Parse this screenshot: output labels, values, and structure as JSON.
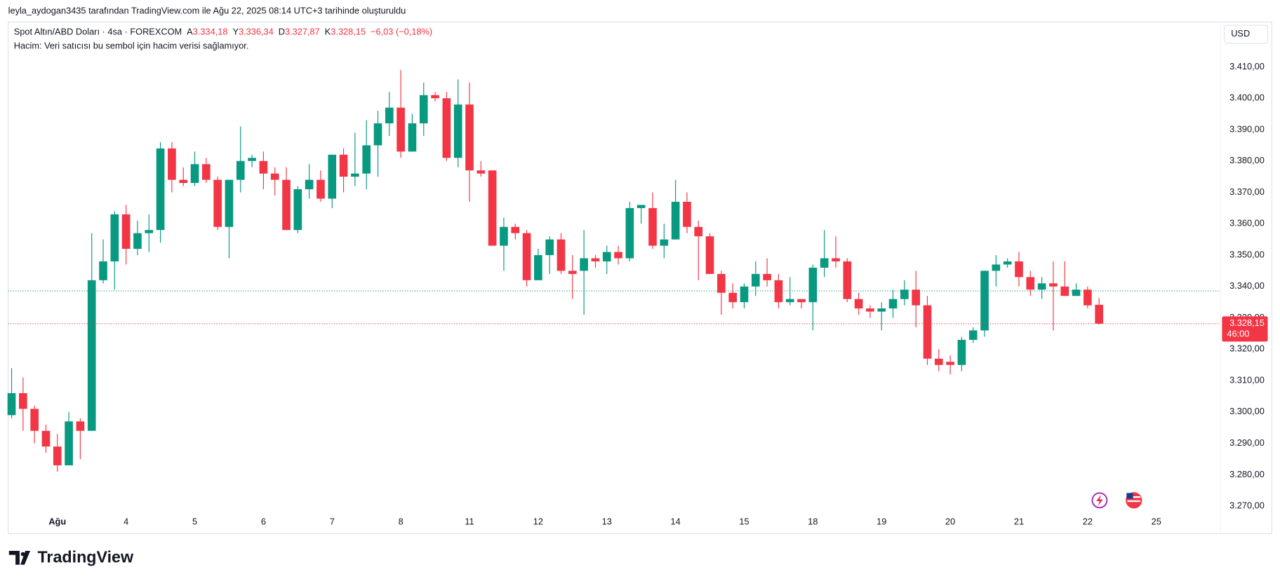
{
  "header": {
    "credit": "leyla_aydogan3435 tarafından TradingView.com ile Ağu 22, 2025 08:14 UTC+3 tarihinde oluşturuldu"
  },
  "chart_data": {
    "type": "candlestick",
    "legend": {
      "symbol": "Spot Altın/ABD Doları · 4sa · FOREXCOM",
      "open_label": "A",
      "open": "3.334,18",
      "high_label": "Y",
      "high": "3.336,34",
      "low_label": "D",
      "low": "3.327,87",
      "close_label": "K",
      "close": "3.328,15",
      "change": "−6,03 (−0,18%)"
    },
    "note": "Hacim: Veri satıcısı bu sembol için hacim verisi sağlamıyor.",
    "currency": "USD",
    "up_color": "#089981",
    "down_color": "#f23645",
    "open": [
      3299,
      3306,
      3301,
      3294,
      3289,
      3283,
      3297,
      3294,
      3342,
      3348,
      3363,
      3352,
      3357,
      3358,
      3384,
      3374,
      3373,
      3379,
      3374,
      3359,
      3374,
      3380,
      3380,
      3376,
      3374,
      3358,
      3371,
      3374,
      3368,
      3382,
      3375,
      3376,
      3385,
      3392,
      3397,
      3383,
      3392,
      3401,
      3400,
      3381,
      3398,
      3377,
      3377,
      3353,
      3359,
      3357,
      3342,
      3350,
      3355,
      3345,
      3345,
      3349,
      3348,
      3351,
      3349,
      3365,
      3365,
      3353,
      3355,
      3367,
      3359,
      3356,
      3344,
      3338,
      3335,
      3340,
      3344,
      3342,
      3335,
      3336,
      3335,
      3346,
      3349,
      3348,
      3336,
      3333,
      3332,
      3333,
      3336,
      3339,
      3334,
      3317,
      3316,
      3315,
      3323,
      3326,
      3345,
      3347,
      3348,
      3343,
      3339,
      3341,
      3340,
      3337,
      3339,
      3334.18
    ],
    "high": [
      3314,
      3311,
      3302,
      3296,
      3293,
      3300,
      3298,
      3357,
      3355,
      3364,
      3366,
      3361,
      3363,
      3386,
      3386,
      3378,
      3383,
      3381,
      3375,
      3374,
      3391,
      3382,
      3383,
      3378,
      3378,
      3372,
      3379,
      3377,
      3382,
      3384,
      3389,
      3393,
      3396,
      3402,
      3409,
      3395,
      3405,
      3402,
      3402,
      3406,
      3405,
      3380,
      3377,
      3362,
      3360,
      3358,
      3352,
      3356,
      3357,
      3350,
      3358,
      3350,
      3353,
      3353,
      3367,
      3366,
      3370,
      3360,
      3374,
      3370,
      3361,
      3357,
      3345,
      3341,
      3341,
      3348,
      3349,
      3344,
      3343,
      3336,
      3347,
      3358,
      3356,
      3349,
      3338,
      3334,
      3335,
      3339,
      3342,
      3345,
      3337,
      3320,
      3318,
      3324,
      3327,
      3345,
      3350,
      3349,
      3351,
      3345,
      3343,
      3348,
      3348,
      3341,
      3340,
      3336.34
    ],
    "low": [
      3298,
      3294,
      3290,
      3287,
      3281,
      3283,
      3285,
      3294,
      3341,
      3339,
      3347,
      3350,
      3351,
      3354,
      3370,
      3372,
      3372,
      3373,
      3358,
      3349,
      3370,
      3378,
      3371,
      3369,
      3358,
      3357,
      3368,
      3367,
      3365,
      3370,
      3372,
      3371,
      3375,
      3388,
      3381,
      3383,
      3388,
      3399,
      3380,
      3378,
      3367,
      3375,
      3353,
      3345,
      3355,
      3340,
      3342,
      3344,
      3344,
      3336,
      3331,
      3346,
      3344,
      3347,
      3348,
      3360,
      3352,
      3349,
      3355,
      3357,
      3342,
      3344,
      3331,
      3333,
      3333,
      3337,
      3340,
      3333,
      3334,
      3333,
      3326,
      3343,
      3346,
      3335,
      3331,
      3330,
      3326,
      3330,
      3334,
      3327,
      3315,
      3313,
      3312,
      3313,
      3322,
      3324,
      3340,
      3346,
      3340,
      3337,
      3336,
      3326,
      3337,
      3337,
      3333,
      3327.87
    ],
    "close": [
      3306,
      3301,
      3294,
      3289,
      3283,
      3297,
      3294,
      3342,
      3348,
      3363,
      3352,
      3357,
      3358,
      3384,
      3374,
      3373,
      3379,
      3374,
      3359,
      3374,
      3380,
      3381,
      3376,
      3374,
      3358,
      3371,
      3374,
      3368,
      3382,
      3375,
      3376,
      3385,
      3392,
      3397,
      3383,
      3392,
      3401,
      3400,
      3381,
      3398,
      3377,
      3376,
      3353,
      3359,
      3357,
      3342,
      3350,
      3355,
      3345,
      3344,
      3349,
      3348,
      3351,
      3349,
      3365,
      3366,
      3353,
      3355,
      3367,
      3359,
      3356,
      3344,
      3338,
      3335,
      3340,
      3344,
      3342,
      3335,
      3336,
      3335,
      3346,
      3349,
      3348,
      3336,
      3333,
      3332,
      3333,
      3336,
      3339,
      3334,
      3317,
      3315,
      3315,
      3323,
      3326,
      3345,
      3347,
      3348,
      3343,
      3339,
      3341,
      3340,
      3337,
      3339,
      3334,
      3328.15
    ],
    "xlim": [
      -0.3,
      105.6
    ],
    "xticks": [
      {
        "value": 4,
        "label": "Ağu"
      },
      {
        "value": 10,
        "label": "4"
      },
      {
        "value": 16,
        "label": "5"
      },
      {
        "value": 22,
        "label": "6"
      },
      {
        "value": 28,
        "label": "7"
      },
      {
        "value": 34,
        "label": "8"
      },
      {
        "value": 40,
        "label": "11"
      },
      {
        "value": 46,
        "label": "12"
      },
      {
        "value": 52,
        "label": "13"
      },
      {
        "value": 58,
        "label": "14"
      },
      {
        "value": 64,
        "label": "15"
      },
      {
        "value": 70,
        "label": "18"
      },
      {
        "value": 76,
        "label": "19"
      },
      {
        "value": 82,
        "label": "20"
      },
      {
        "value": 88,
        "label": "21"
      },
      {
        "value": 94,
        "label": "22"
      },
      {
        "value": 100,
        "label": "25"
      }
    ],
    "ylim": [
      3261.2,
      3424.3
    ],
    "yticks": [
      {
        "value": 3270,
        "label": "3.270,00"
      },
      {
        "value": 3280,
        "label": "3.280,00"
      },
      {
        "value": 3290,
        "label": "3.290,00"
      },
      {
        "value": 3300,
        "label": "3.300,00"
      },
      {
        "value": 3310,
        "label": "3.310,00"
      },
      {
        "value": 3320,
        "label": "3.320,00"
      },
      {
        "value": 3330,
        "label": "3.330,00"
      },
      {
        "value": 3340,
        "label": "3.340,00"
      },
      {
        "value": 3350,
        "label": "3.350,00"
      },
      {
        "value": 3360,
        "label": "3.360,00"
      },
      {
        "value": 3370,
        "label": "3.370,00"
      },
      {
        "value": 3380,
        "label": "3.380,00"
      },
      {
        "value": 3390,
        "label": "3.390,00"
      },
      {
        "value": 3400,
        "label": "3.400,00"
      },
      {
        "value": 3410,
        "label": "3.410,00"
      }
    ],
    "grid": false,
    "last_price": {
      "value": 3328.15,
      "label": "3.328,15",
      "countdown": "46:00"
    },
    "reference_line": 3338.6
  },
  "footer": {
    "logo": "TradingView"
  }
}
